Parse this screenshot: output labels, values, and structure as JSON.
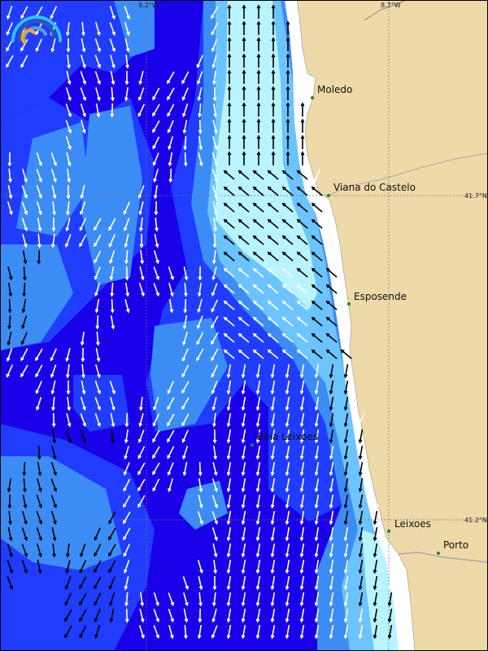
{
  "map": {
    "colors": {
      "deep": "#1a00e8",
      "mid": "#1f3cff",
      "light": "#3c8cf5",
      "lighter": "#6cc4ff",
      "cyan": "#b8f4ff",
      "land": "#eed9a8",
      "coast_strip": "#ffffff"
    },
    "grid": {
      "meridians": [
        {
          "label": "9.2°W"
        },
        {
          "label": "8.7°W"
        }
      ],
      "parallels": [
        {
          "label": "41.7°N"
        },
        {
          "label": "41.2°N"
        }
      ]
    },
    "places": [
      {
        "name": "Moledo"
      },
      {
        "name": "Viana do Castelo"
      },
      {
        "name": "Esposende"
      },
      {
        "name": "Boia Leixoes"
      },
      {
        "name": "Leixoes"
      },
      {
        "name": "Porto"
      }
    ],
    "logo_icon": "rainbow-arc-logo-icon",
    "arrow_icon": "current-arrow-icon"
  }
}
